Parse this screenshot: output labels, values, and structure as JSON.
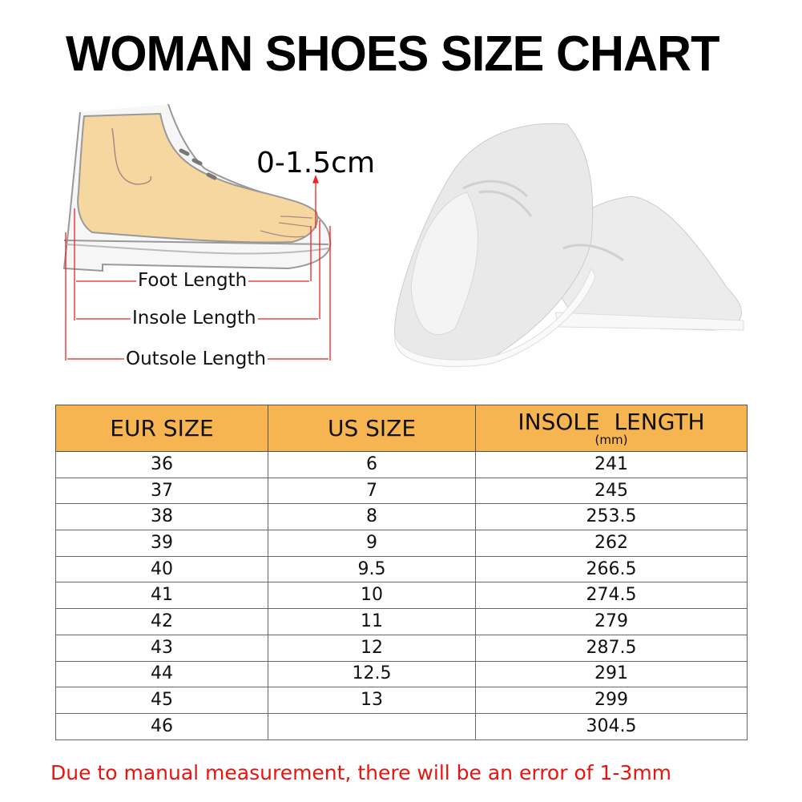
{
  "title": "WOMAN SHOES SIZE CHART",
  "diagram": {
    "gap_label": "0-1.5cm",
    "foot_length": "Foot Length",
    "insole_length": "Insole Length",
    "outsole_length": "Outsole Length"
  },
  "table": {
    "headers": {
      "eur": "EUR SIZE",
      "us": "US SIZE",
      "insole": "INSOLE  LENGTH",
      "insole_unit": "(mm)"
    },
    "rows": [
      {
        "eur": "36",
        "us": "6",
        "insole": "241"
      },
      {
        "eur": "37",
        "us": "7",
        "insole": "245"
      },
      {
        "eur": "38",
        "us": "8",
        "insole": "253.5"
      },
      {
        "eur": "39",
        "us": "9",
        "insole": "262"
      },
      {
        "eur": "40",
        "us": "9.5",
        "insole": "266.5"
      },
      {
        "eur": "41",
        "us": "10",
        "insole": "274.5"
      },
      {
        "eur": "42",
        "us": "11",
        "insole": "279"
      },
      {
        "eur": "43",
        "us": "12",
        "insole": "287.5"
      },
      {
        "eur": "44",
        "us": "12.5",
        "insole": "291"
      },
      {
        "eur": "45",
        "us": "13",
        "insole": "299"
      },
      {
        "eur": "46",
        "us": "",
        "insole": "304.5"
      }
    ],
    "header_color": "#F7B551"
  },
  "note": "Due to manual measurement, there will be an error of 1-3mm",
  "note_color": "#e8140f"
}
